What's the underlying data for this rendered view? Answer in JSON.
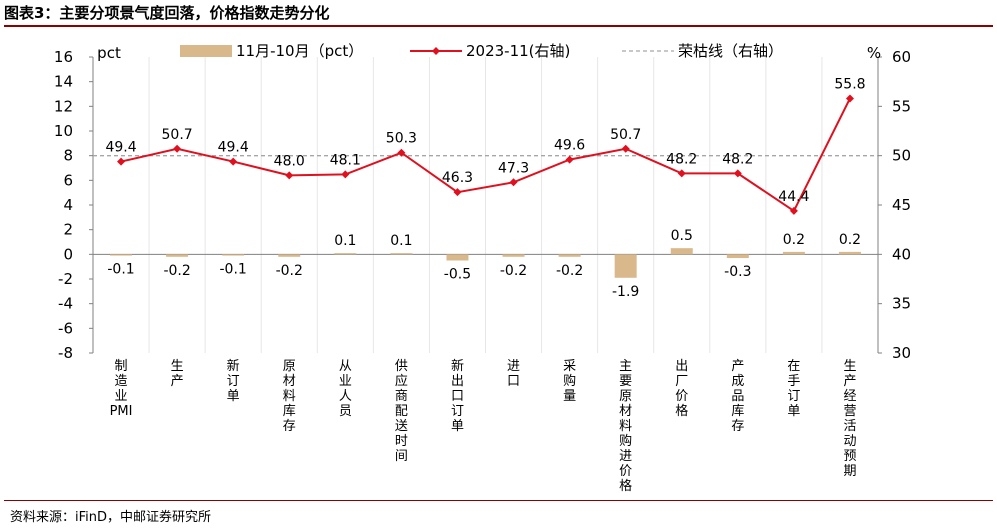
{
  "figure": {
    "title": "图表3：主要分项景气度回落，价格指数走势分化",
    "source": "资料来源：iFinD，中邮证券研究所"
  },
  "colors": {
    "bar": "#D9B98C",
    "line": "#E0101E",
    "baseline": "#A6A6A6",
    "rule": "#8B0000"
  },
  "chart_data": {
    "type": "bar",
    "categories": [
      "制造业PMI",
      "生产",
      "新订单",
      "原材料库存",
      "从业人员",
      "供应商配送时间",
      "新出口订单",
      "进口",
      "采购量",
      "主要原材料购进价格",
      "出厂价格",
      "产成品库存",
      "在手订单",
      "生产经营活动预期"
    ],
    "series": [
      {
        "name": "11月-10月（pct）",
        "type": "bar",
        "axis": "left",
        "values": [
          -0.1,
          -0.2,
          -0.1,
          -0.2,
          0.1,
          0.1,
          -0.5,
          -0.2,
          -0.2,
          -1.9,
          0.5,
          -0.3,
          0.2,
          0.2
        ],
        "labels": [
          "-0.1",
          "-0.2",
          "-0.1",
          "-0.2",
          "0.1",
          "0.1",
          "-0.5",
          "-0.2",
          "-0.2",
          "-1.9",
          "0.5",
          "-0.3",
          "0.2",
          "0.2"
        ]
      },
      {
        "name": "2023-11(右轴)",
        "type": "line",
        "axis": "right",
        "values": [
          49.4,
          50.7,
          49.4,
          48.0,
          48.1,
          50.3,
          46.3,
          47.3,
          49.6,
          50.7,
          48.2,
          48.2,
          44.4,
          55.8
        ],
        "labels": [
          "49.4",
          "50.7",
          "49.4",
          "48.0",
          "48.1",
          "50.3",
          "46.3",
          "47.3",
          "49.6",
          "50.7",
          "48.2",
          "48.2",
          "44.4",
          "55.8"
        ]
      },
      {
        "name": "荣枯线（右轴）",
        "type": "reference",
        "axis": "right",
        "value": 50
      }
    ],
    "y_left": {
      "label": "pct",
      "range": [
        -8,
        16
      ],
      "ticks": [
        "-8",
        "-6",
        "-4",
        "-2",
        "0",
        "2",
        "4",
        "6",
        "8",
        "10",
        "12",
        "14",
        "16"
      ]
    },
    "y_right": {
      "label": "%",
      "range": [
        30,
        60
      ],
      "ticks": [
        "30",
        "35",
        "40",
        "45",
        "50",
        "55",
        "60"
      ]
    },
    "grid": "vertical",
    "legend": "top"
  }
}
